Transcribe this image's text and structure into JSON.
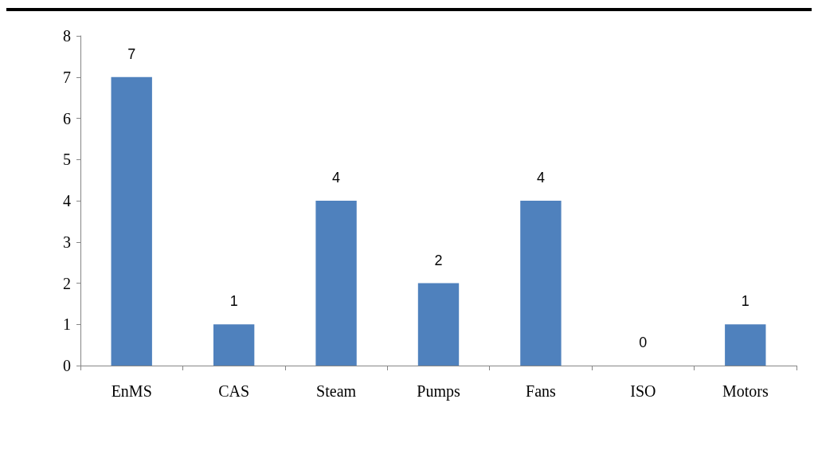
{
  "chart_data": {
    "type": "bar",
    "categories": [
      "EnMS",
      "CAS",
      "Steam",
      "Pumps",
      "Fans",
      "ISO",
      "Motors"
    ],
    "values": [
      7,
      1,
      4,
      2,
      4,
      0,
      1
    ],
    "color": "#4f81bd",
    "ylim": [
      0,
      8
    ],
    "yticks": [
      0,
      1,
      2,
      3,
      4,
      5,
      6,
      7,
      8
    ],
    "grid": false,
    "data_labels": true
  }
}
